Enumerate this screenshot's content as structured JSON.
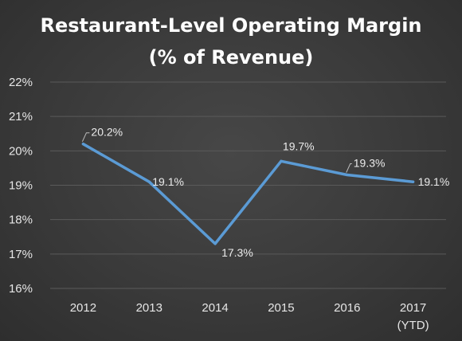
{
  "chart_data": {
    "type": "line",
    "title": "Restaurant-Level Operating Margin",
    "subtitle": "(% of Revenue)",
    "categories": [
      "2012",
      "2013",
      "2014",
      "2015",
      "2016",
      "2017"
    ],
    "category_sublabels": [
      "",
      "",
      "",
      "",
      "",
      "(YTD)"
    ],
    "series": [
      {
        "values": [
          20.2,
          19.1,
          17.3,
          19.7,
          19.3,
          19.1
        ],
        "data_labels": [
          "20.2%",
          "19.1%",
          "17.3%",
          "19.7%",
          "19.3%",
          "19.1%"
        ],
        "color": "#5b9bd5"
      }
    ],
    "ylim": [
      16,
      22
    ],
    "yticks": [
      16,
      17,
      18,
      19,
      20,
      21,
      22
    ],
    "ytick_labels": [
      "16%",
      "17%",
      "18%",
      "19%",
      "20%",
      "21%",
      "22%"
    ],
    "xlabel": "",
    "ylabel": "",
    "grid": true,
    "legend": "none"
  }
}
